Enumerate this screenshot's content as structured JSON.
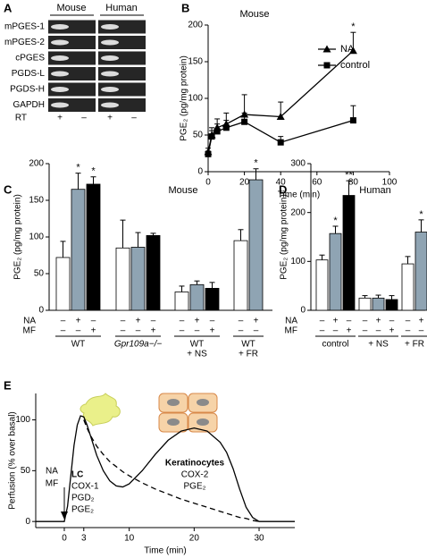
{
  "gel": {
    "panel": "A",
    "columns": [
      "Mouse",
      "Human"
    ],
    "rows": [
      "mPGES-1",
      "mPGES-2",
      "cPGES",
      "PGDS-L",
      "PGDS-H",
      "GAPDH"
    ],
    "rt_label": "RT",
    "rt_signs": [
      "+",
      "–",
      "+",
      "–"
    ]
  },
  "chart_data": [
    {
      "panel": "B",
      "type": "line",
      "title": "Mouse",
      "x_label": "Time (min)",
      "y_label": "PGE₂ (pg/mg protein)",
      "x": [
        0,
        2,
        5,
        10,
        20,
        40,
        80
      ],
      "series": [
        {
          "name": "NA",
          "marker": "triangle",
          "color": "#000000",
          "values": [
            27,
            50,
            60,
            65,
            78,
            75,
            165
          ],
          "errors": [
            5,
            10,
            12,
            15,
            27,
            20,
            25
          ],
          "significance": [
            null,
            null,
            null,
            null,
            null,
            null,
            "*"
          ]
        },
        {
          "name": "control",
          "marker": "square",
          "color": "#000000",
          "values": [
            24,
            48,
            55,
            60,
            68,
            40,
            70
          ],
          "errors": [
            4,
            8,
            10,
            10,
            12,
            8,
            20
          ]
        }
      ],
      "xlim": [
        0,
        100
      ],
      "xticks": [
        0,
        20,
        40,
        60,
        80,
        100
      ],
      "ylim": [
        0,
        200
      ],
      "yticks": [
        0,
        50,
        100,
        150,
        200
      ],
      "legend": "upper right"
    },
    {
      "panel": "C",
      "type": "grouped_bar",
      "title": "Mouse",
      "y_label": "PGE₂ (pg/mg protein)",
      "ylim": [
        0,
        200
      ],
      "yticks": [
        0,
        50,
        100,
        150,
        200
      ],
      "sign_rows": [
        "NA",
        "MF"
      ],
      "groups": [
        {
          "label": [
            "WT"
          ],
          "bars": [
            {
              "value": 72,
              "error": 22,
              "color": "#ffffff",
              "signs": [
                "–",
                "–"
              ]
            },
            {
              "value": 165,
              "error": 22,
              "color": "#8fa4b3",
              "signs": [
                "+",
                "–"
              ],
              "significance": "*"
            },
            {
              "value": 172,
              "error": 10,
              "color": "#000000",
              "signs": [
                "–",
                "+"
              ],
              "significance": "*"
            }
          ]
        },
        {
          "label": [
            "Gpr109a−/−"
          ],
          "label_style": "italic",
          "bars": [
            {
              "value": 85,
              "error": 38,
              "color": "#ffffff",
              "signs": [
                "–",
                "–"
              ]
            },
            {
              "value": 86,
              "error": 20,
              "color": "#8fa4b3",
              "signs": [
                "+",
                "–"
              ]
            },
            {
              "value": 102,
              "error": 3,
              "color": "#000000",
              "signs": [
                "–",
                "+"
              ]
            }
          ]
        },
        {
          "label": [
            "WT",
            "+ NS"
          ],
          "bars": [
            {
              "value": 25,
              "error": 8,
              "color": "#ffffff",
              "signs": [
                "–",
                "–"
              ]
            },
            {
              "value": 35,
              "error": 5,
              "color": "#8fa4b3",
              "signs": [
                "+",
                "–"
              ]
            },
            {
              "value": 30,
              "error": 8,
              "color": "#000000",
              "signs": [
                "–",
                "+"
              ]
            }
          ]
        },
        {
          "label": [
            "WT",
            "+ FR"
          ],
          "bars": [
            {
              "value": 95,
              "error": 15,
              "color": "#ffffff",
              "signs": [
                "–",
                "–"
              ]
            },
            {
              "value": 178,
              "error": 15,
              "color": "#8fa4b3",
              "signs": [
                "+",
                "–"
              ],
              "significance": "*"
            }
          ]
        }
      ]
    },
    {
      "panel": "D",
      "type": "grouped_bar",
      "title": "Human",
      "y_label": "PGE₂ (pg/mg protein)",
      "ylim": [
        0,
        300
      ],
      "yticks": [
        0,
        100,
        200,
        300
      ],
      "sign_rows": [
        "NA",
        "MF"
      ],
      "groups": [
        {
          "label": [
            "control"
          ],
          "bars": [
            {
              "value": 103,
              "error": 10,
              "color": "#ffffff",
              "signs": [
                "–",
                "–"
              ]
            },
            {
              "value": 157,
              "error": 15,
              "color": "#8fa4b3",
              "signs": [
                "+",
                "–"
              ],
              "significance": "*"
            },
            {
              "value": 235,
              "error": 30,
              "color": "#000000",
              "signs": [
                "–",
                "+"
              ],
              "significance": "**"
            }
          ]
        },
        {
          "label": [
            "+ NS"
          ],
          "bars": [
            {
              "value": 25,
              "error": 5,
              "color": "#ffffff",
              "signs": [
                "–",
                "–"
              ]
            },
            {
              "value": 25,
              "error": 6,
              "color": "#8fa4b3",
              "signs": [
                "+",
                "–"
              ]
            },
            {
              "value": 22,
              "error": 8,
              "color": "#000000",
              "signs": [
                "–",
                "+"
              ]
            }
          ]
        },
        {
          "label": [
            "+ FR"
          ],
          "bars": [
            {
              "value": 95,
              "error": 15,
              "color": "#ffffff",
              "signs": [
                "–",
                "–"
              ]
            },
            {
              "value": 160,
              "error": 25,
              "color": "#8fa4b3",
              "signs": [
                "+",
                "–"
              ],
              "significance": "*"
            }
          ]
        }
      ]
    },
    {
      "panel": "E",
      "type": "line",
      "x_label": "Time (min)",
      "y_label": "Perfusion (% over basal)",
      "x": [
        -4.4,
        0,
        0.5,
        1,
        1.5,
        2,
        2.5,
        3,
        3.5,
        4,
        5,
        6,
        7,
        8,
        9,
        10,
        12,
        14,
        16,
        18,
        20,
        22,
        24,
        25,
        26,
        27,
        28,
        29,
        30,
        35.5
      ],
      "series": [
        {
          "style": "solid",
          "color": "#000000",
          "values": [
            0,
            0,
            15,
            45,
            75,
            95,
            104,
            103,
            95,
            85,
            65,
            50,
            40,
            35,
            34,
            37,
            50,
            66,
            80,
            89,
            92,
            89,
            78,
            68,
            52,
            32,
            14,
            4,
            0,
            0
          ]
        },
        {
          "style": "dashed",
          "color": "#000000",
          "values": [
            null,
            null,
            null,
            null,
            null,
            null,
            null,
            100,
            92,
            85,
            74,
            66,
            59,
            54,
            49,
            45,
            38,
            32,
            27,
            22,
            18,
            14,
            10,
            8,
            6,
            4,
            3,
            1,
            0,
            null
          ]
        }
      ],
      "xlim": [
        -4.4,
        35.5
      ],
      "xticks": [
        0,
        3,
        10,
        20,
        30
      ],
      "ylim": [
        -6,
        126
      ],
      "yticks": [
        0,
        50,
        100
      ],
      "annotations": [
        "NA",
        "MF",
        "LC",
        "COX-1",
        "PGD₂",
        "PGE₂",
        "Keratinocytes",
        "COX-2",
        "PGE₂"
      ]
    }
  ]
}
